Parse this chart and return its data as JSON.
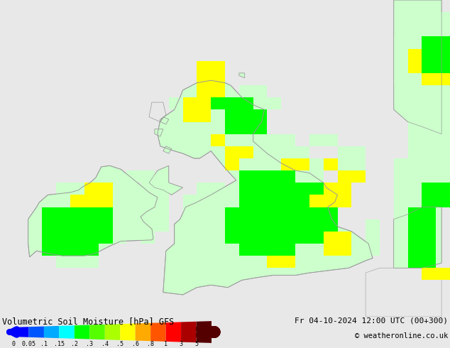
{
  "title": "Volumetric Soil Moisture [hPa] GFS",
  "date_text": "Fr 04-10-2024 12:00 UTC (00+300)",
  "copyright_text": "© weatheronline.co.uk",
  "colorbar_labels": [
    "0",
    "0.05",
    ".1",
    ".15",
    ".2",
    ".3",
    ".4",
    ".5",
    ".6",
    ".8",
    "1",
    "3",
    "5"
  ],
  "colorbar_colors": [
    "#0000ff",
    "#0055ff",
    "#00aaff",
    "#00ffff",
    "#00ff00",
    "#55ff00",
    "#aaff00",
    "#ffff00",
    "#ffaa00",
    "#ff5500",
    "#ff0000",
    "#aa0000",
    "#550000"
  ],
  "background_color": "#e8e8e8",
  "sea_color": "#e0e0e0",
  "coast_color": "#aaaaaa",
  "light_green": "#ccffcc",
  "mid_green": "#00ff00",
  "yellow": "#ffff00",
  "xlim": [
    -11.5,
    4.5
  ],
  "ylim": [
    49.0,
    62.0
  ],
  "grid_res": 0.5,
  "green_cells": [
    [
      -10.0,
      51.5
    ],
    [
      -9.5,
      51.5
    ],
    [
      -9.0,
      51.5
    ],
    [
      -8.5,
      51.5
    ],
    [
      -10.0,
      52.0
    ],
    [
      -9.5,
      52.0
    ],
    [
      -9.0,
      52.0
    ],
    [
      -8.5,
      52.0
    ],
    [
      -8.0,
      52.0
    ],
    [
      -10.0,
      52.5
    ],
    [
      -9.5,
      52.5
    ],
    [
      -9.0,
      52.5
    ],
    [
      -8.5,
      52.5
    ],
    [
      -8.0,
      52.5
    ],
    [
      -10.0,
      53.0
    ],
    [
      -9.5,
      53.0
    ],
    [
      -9.0,
      53.0
    ],
    [
      -8.5,
      53.0
    ],
    [
      -8.0,
      53.0
    ],
    [
      -3.5,
      53.0
    ],
    [
      -3.0,
      53.0
    ],
    [
      -2.5,
      53.0
    ],
    [
      -2.0,
      53.0
    ],
    [
      -1.5,
      53.0
    ],
    [
      -1.0,
      53.0
    ],
    [
      -0.5,
      53.0
    ],
    [
      0.0,
      53.0
    ],
    [
      -3.5,
      52.5
    ],
    [
      -3.0,
      52.5
    ],
    [
      -2.5,
      52.5
    ],
    [
      -2.0,
      52.5
    ],
    [
      -1.5,
      52.5
    ],
    [
      -1.0,
      52.5
    ],
    [
      -0.5,
      52.5
    ],
    [
      0.0,
      52.5
    ],
    [
      -3.5,
      52.0
    ],
    [
      -3.0,
      52.0
    ],
    [
      -2.5,
      52.0
    ],
    [
      -2.0,
      52.0
    ],
    [
      -1.5,
      52.0
    ],
    [
      -1.0,
      52.0
    ],
    [
      -0.5,
      52.0
    ],
    [
      -3.0,
      53.5
    ],
    [
      -2.5,
      53.5
    ],
    [
      -2.0,
      53.5
    ],
    [
      -1.5,
      53.5
    ],
    [
      -1.0,
      53.5
    ],
    [
      -0.5,
      53.5
    ],
    [
      -3.0,
      54.0
    ],
    [
      -2.5,
      54.0
    ],
    [
      -2.0,
      54.0
    ],
    [
      -1.5,
      54.0
    ],
    [
      -1.0,
      54.0
    ],
    [
      -0.5,
      54.0
    ],
    [
      -3.0,
      54.5
    ],
    [
      -2.5,
      54.5
    ],
    [
      -2.0,
      54.5
    ],
    [
      -1.5,
      54.5
    ],
    [
      -3.0,
      51.5
    ],
    [
      -2.5,
      51.5
    ],
    [
      -2.0,
      51.5
    ],
    [
      -1.5,
      51.5
    ],
    [
      -3.5,
      56.5
    ],
    [
      -3.0,
      56.5
    ],
    [
      -2.5,
      56.5
    ],
    [
      -3.5,
      57.0
    ],
    [
      -3.0,
      57.0
    ],
    [
      -2.5,
      57.0
    ],
    [
      -3.5,
      57.5
    ],
    [
      -3.0,
      57.5
    ],
    [
      -4.0,
      57.5
    ],
    [
      3.0,
      51.0
    ],
    [
      3.0,
      51.5
    ],
    [
      3.0,
      52.0
    ],
    [
      3.5,
      51.0
    ],
    [
      3.5,
      51.5
    ],
    [
      3.5,
      52.0
    ],
    [
      3.0,
      52.5
    ],
    [
      3.5,
      52.5
    ],
    [
      3.0,
      53.0
    ],
    [
      3.5,
      53.0
    ],
    [
      3.5,
      53.5
    ],
    [
      4.0,
      53.5
    ],
    [
      3.5,
      54.0
    ],
    [
      4.0,
      54.0
    ],
    [
      3.5,
      59.0
    ],
    [
      4.0,
      59.0
    ],
    [
      3.5,
      59.5
    ],
    [
      4.0,
      59.5
    ],
    [
      3.5,
      60.0
    ],
    [
      4.0,
      60.0
    ]
  ],
  "yellow_cells": [
    [
      -9.0,
      53.5
    ],
    [
      -8.5,
      53.5
    ],
    [
      -8.0,
      53.5
    ],
    [
      -8.5,
      54.0
    ],
    [
      -8.0,
      54.0
    ],
    [
      -4.5,
      57.0
    ],
    [
      -5.0,
      57.0
    ],
    [
      -4.5,
      57.5
    ],
    [
      -5.0,
      57.5
    ],
    [
      -2.0,
      51.0
    ],
    [
      -1.5,
      51.0
    ],
    [
      -0.5,
      53.5
    ],
    [
      0.0,
      53.5
    ],
    [
      0.5,
      53.5
    ],
    [
      0.0,
      54.0
    ],
    [
      0.5,
      54.0
    ],
    [
      0.0,
      52.0
    ],
    [
      0.5,
      52.0
    ],
    [
      0.0,
      51.5
    ],
    [
      0.5,
      51.5
    ],
    [
      -1.5,
      55.0
    ],
    [
      -1.0,
      55.0
    ],
    [
      0.0,
      55.0
    ],
    [
      3.5,
      50.5
    ],
    [
      4.0,
      50.5
    ],
    [
      3.5,
      58.5
    ],
    [
      4.0,
      58.5
    ],
    [
      3.0,
      59.0
    ],
    [
      3.0,
      59.5
    ],
    [
      -3.5,
      55.5
    ],
    [
      -3.0,
      55.5
    ],
    [
      0.5,
      54.5
    ],
    [
      1.0,
      54.5
    ]
  ],
  "lightgreen_cells": [
    [
      -9.5,
      53.5
    ],
    [
      -9.5,
      54.0
    ],
    [
      -9.0,
      54.0
    ],
    [
      -9.5,
      51.0
    ],
    [
      -9.0,
      51.0
    ],
    [
      -8.5,
      51.0
    ],
    [
      -7.5,
      52.0
    ],
    [
      -7.5,
      52.5
    ],
    [
      -7.5,
      53.0
    ],
    [
      -6.5,
      52.0
    ],
    [
      -6.5,
      52.5
    ],
    [
      -6.0,
      52.5
    ],
    [
      -6.5,
      53.0
    ],
    [
      -6.0,
      53.0
    ],
    [
      -6.0,
      53.5
    ],
    [
      -6.5,
      53.5
    ],
    [
      -6.0,
      54.0
    ],
    [
      -6.5,
      54.0
    ],
    [
      -7.0,
      54.5
    ],
    [
      -6.5,
      54.5
    ],
    [
      -4.0,
      53.0
    ],
    [
      -4.0,
      52.5
    ],
    [
      -4.0,
      52.0
    ],
    [
      -4.5,
      52.0
    ],
    [
      -4.0,
      51.5
    ],
    [
      -4.5,
      51.5
    ],
    [
      -4.5,
      53.0
    ],
    [
      -4.5,
      53.5
    ],
    [
      -4.0,
      53.5
    ],
    [
      -4.5,
      54.0
    ],
    [
      -4.0,
      54.0
    ],
    [
      -5.0,
      52.5
    ],
    [
      -5.0,
      53.0
    ],
    [
      -5.0,
      53.5
    ],
    [
      -1.0,
      52.0
    ],
    [
      -0.5,
      52.0
    ],
    [
      -1.5,
      54.5
    ],
    [
      -1.0,
      54.5
    ],
    [
      -0.5,
      54.5
    ],
    [
      -1.0,
      55.0
    ],
    [
      -0.5,
      55.0
    ],
    [
      -2.5,
      55.0
    ],
    [
      -2.0,
      55.0
    ],
    [
      -2.5,
      55.5
    ],
    [
      -2.0,
      55.5
    ],
    [
      -1.5,
      55.5
    ],
    [
      -1.0,
      55.5
    ],
    [
      -2.5,
      56.0
    ],
    [
      -2.0,
      56.0
    ],
    [
      -1.5,
      56.0
    ],
    [
      -3.0,
      56.0
    ],
    [
      -3.5,
      56.0
    ],
    [
      -4.0,
      56.5
    ],
    [
      -4.5,
      56.5
    ],
    [
      -5.0,
      57.5
    ],
    [
      -5.5,
      57.5
    ],
    [
      -2.5,
      57.5
    ],
    [
      -2.0,
      57.5
    ],
    [
      -3.0,
      58.0
    ],
    [
      -2.5,
      58.0
    ],
    [
      2.5,
      51.0
    ],
    [
      2.5,
      51.5
    ],
    [
      2.5,
      52.0
    ],
    [
      2.5,
      52.5
    ],
    [
      2.5,
      53.0
    ],
    [
      2.5,
      53.5
    ],
    [
      3.0,
      53.5
    ],
    [
      2.5,
      54.0
    ],
    [
      3.0,
      54.0
    ],
    [
      2.5,
      54.5
    ],
    [
      3.0,
      54.5
    ],
    [
      3.5,
      54.5
    ],
    [
      4.0,
      54.5
    ],
    [
      2.5,
      55.0
    ],
    [
      3.0,
      55.0
    ],
    [
      3.5,
      55.0
    ],
    [
      4.0,
      55.0
    ],
    [
      3.0,
      55.5
    ],
    [
      3.5,
      55.5
    ],
    [
      4.0,
      55.5
    ],
    [
      3.0,
      56.0
    ],
    [
      3.5,
      56.0
    ],
    [
      4.0,
      56.0
    ],
    [
      3.0,
      56.5
    ],
    [
      3.5,
      56.5
    ],
    [
      4.0,
      56.5
    ],
    [
      3.0,
      57.0
    ],
    [
      3.5,
      57.0
    ],
    [
      4.0,
      57.0
    ],
    [
      3.0,
      57.5
    ],
    [
      3.5,
      57.5
    ],
    [
      4.0,
      57.5
    ],
    [
      3.0,
      58.0
    ],
    [
      3.5,
      58.0
    ],
    [
      4.0,
      58.0
    ],
    [
      2.5,
      58.5
    ],
    [
      3.0,
      58.5
    ],
    [
      2.5,
      59.0
    ],
    [
      2.5,
      59.5
    ],
    [
      2.5,
      60.0
    ],
    [
      4.0,
      60.5
    ],
    [
      4.0,
      61.0
    ],
    [
      -0.5,
      56.0
    ],
    [
      0.0,
      56.0
    ],
    [
      0.5,
      55.5
    ],
    [
      1.0,
      55.5
    ],
    [
      0.5,
      55.0
    ],
    [
      1.0,
      55.0
    ],
    [
      0.5,
      54.5
    ],
    [
      1.0,
      54.5
    ],
    [
      1.5,
      51.5
    ],
    [
      1.5,
      52.0
    ],
    [
      1.5,
      52.5
    ]
  ],
  "scotland_yellow_long": [
    [
      -4.0,
      56.0
    ],
    [
      -3.5,
      55.5
    ],
    [
      -3.5,
      55.0
    ],
    [
      -4.5,
      58.0
    ],
    [
      -4.0,
      58.0
    ],
    [
      -4.5,
      58.5
    ],
    [
      -4.0,
      58.5
    ],
    [
      -4.5,
      59.0
    ],
    [
      -4.0,
      59.0
    ]
  ]
}
